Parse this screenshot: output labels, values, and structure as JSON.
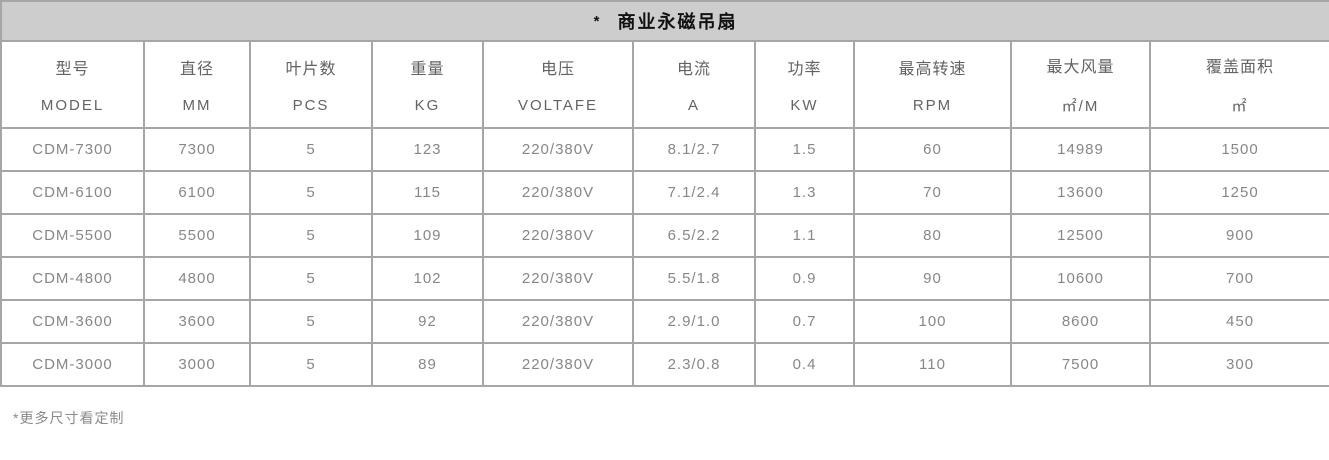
{
  "table": {
    "title_mark": "*",
    "title_text": "商业永磁吊扇",
    "columns": [
      {
        "cn": "型号",
        "en": "MODEL"
      },
      {
        "cn": "直径",
        "en": "MM"
      },
      {
        "cn": "叶片数",
        "en": "PCS"
      },
      {
        "cn": "重量",
        "en": "KG"
      },
      {
        "cn": "电压",
        "en": "VOLTAFE"
      },
      {
        "cn": "电流",
        "en": "A"
      },
      {
        "cn": "功率",
        "en": "KW"
      },
      {
        "cn": "最高转速",
        "en": "RPM"
      },
      {
        "cn": "最大风量",
        "en": "㎡/M"
      },
      {
        "cn": "覆盖面积",
        "en": "㎡"
      }
    ],
    "rows": [
      [
        "CDM-7300",
        "7300",
        "5",
        "123",
        "220/380V",
        "8.1/2.7",
        "1.5",
        "60",
        "14989",
        "1500"
      ],
      [
        "CDM-6100",
        "6100",
        "5",
        "115",
        "220/380V",
        "7.1/2.4",
        "1.3",
        "70",
        "13600",
        "1250"
      ],
      [
        "CDM-5500",
        "5500",
        "5",
        "109",
        "220/380V",
        "6.5/2.2",
        "1.1",
        "80",
        "12500",
        "900"
      ],
      [
        "CDM-4800",
        "4800",
        "5",
        "102",
        "220/380V",
        "5.5/1.8",
        "0.9",
        "90",
        "10600",
        "700"
      ],
      [
        "CDM-3600",
        "3600",
        "5",
        "92",
        "220/380V",
        "2.9/1.0",
        "0.7",
        "100",
        "8600",
        "450"
      ],
      [
        "CDM-3000",
        "3000",
        "5",
        "89",
        "220/380V",
        "2.3/0.8",
        "0.4",
        "110",
        "7500",
        "300"
      ]
    ],
    "footnote": "*更多尺寸看定制"
  },
  "colors": {
    "title_bg": "#cdcdcd",
    "border": "#a6a6a6",
    "title_text": "#111111",
    "header_text": "#636363",
    "cell_text": "#878787",
    "footnote_text": "#8a8a8a",
    "background": "#ffffff"
  }
}
